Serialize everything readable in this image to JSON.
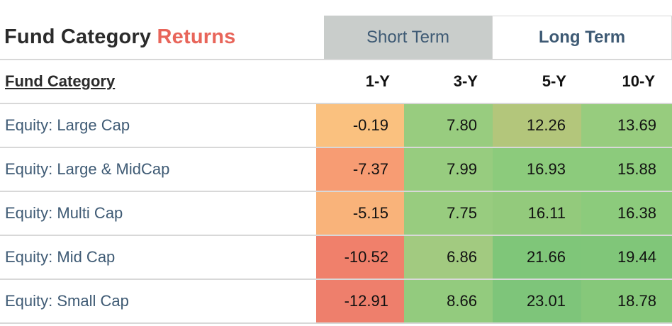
{
  "title": {
    "main": "Fund Category",
    "accent": "Returns"
  },
  "tabs": [
    {
      "label": "Short Term",
      "active": true
    },
    {
      "label": "Long Term",
      "active": false
    }
  ],
  "table": {
    "label_header": "Fund Category",
    "columns": [
      "1-Y",
      "3-Y",
      "5-Y",
      "10-Y"
    ],
    "rows": [
      {
        "label": "Equity: Large Cap",
        "values": [
          "-0.19",
          "7.80",
          "12.26",
          "13.69"
        ],
        "colors": [
          "#fac17f",
          "#98cc7f",
          "#b3c67b",
          "#97cc7e"
        ]
      },
      {
        "label": "Equity: Large & MidCap",
        "values": [
          "-7.37",
          "7.99",
          "16.93",
          "15.88"
        ],
        "colors": [
          "#f79c73",
          "#97cc7f",
          "#8ccb7c",
          "#8ccb7c"
        ]
      },
      {
        "label": "Equity: Multi Cap",
        "values": [
          "-5.15",
          "7.75",
          "16.11",
          "16.38"
        ],
        "colors": [
          "#f9b37a",
          "#98cc7f",
          "#93ca7c",
          "#8ccb7c"
        ]
      },
      {
        "label": "Equity: Mid Cap",
        "values": [
          "-10.52",
          "6.86",
          "21.66",
          "19.44"
        ],
        "colors": [
          "#f0806b",
          "#a2ca80",
          "#7fc679",
          "#80c679"
        ]
      },
      {
        "label": "Equity: Small Cap",
        "values": [
          "-12.91",
          "8.66",
          "23.01",
          "18.78"
        ],
        "colors": [
          "#ee7f6c",
          "#93cb7e",
          "#7ec57a",
          "#86c87a"
        ]
      }
    ]
  }
}
